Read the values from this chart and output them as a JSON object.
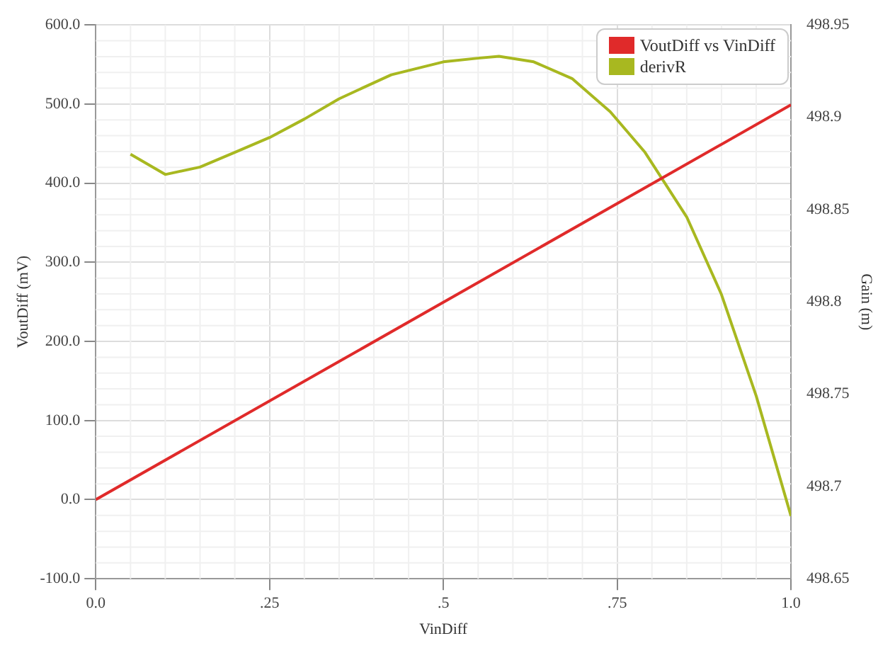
{
  "chart_data": {
    "type": "line",
    "xlabel": "VinDiff",
    "ylabel": "VoutDiff (mV)",
    "y2label": "Gain (m)",
    "xlim": [
      0,
      1
    ],
    "xticks": [
      {
        "value": 0,
        "label": "0.0"
      },
      {
        "value": 0.25,
        "label": ".25"
      },
      {
        "value": 0.5,
        "label": ".5"
      },
      {
        "value": 0.75,
        "label": ".75"
      },
      {
        "value": 1,
        "label": "1.0"
      }
    ],
    "ylim": [
      -100,
      600
    ],
    "yticks": [
      {
        "value": -100,
        "label": "-100.0"
      },
      {
        "value": 0,
        "label": "0.0"
      },
      {
        "value": 100,
        "label": "100.0"
      },
      {
        "value": 200,
        "label": "200.0"
      },
      {
        "value": 300,
        "label": "300.0"
      },
      {
        "value": 400,
        "label": "400.0"
      },
      {
        "value": 500,
        "label": "500.0"
      },
      {
        "value": 600,
        "label": "600.0"
      }
    ],
    "y2lim": [
      498.65,
      498.95
    ],
    "y2ticks": [
      498.65,
      498.7,
      498.75,
      498.8,
      498.85,
      498.9,
      498.95
    ],
    "grid": true,
    "legend": "top right",
    "marker": "none",
    "line_style": "solid",
    "series": [
      {
        "name": "VoutDiff vs VinDiff",
        "color": "#e02a2a",
        "x": [
          0,
          1
        ],
        "values": [
          0,
          499
        ]
      },
      {
        "name": "derivR",
        "color": "#a8b820",
        "axis": "y2",
        "x": [
          0.05,
          0.1,
          0.15,
          0.2,
          0.25,
          0.3,
          0.35,
          0.425,
          0.5,
          0.55,
          0.58,
          0.63,
          0.685,
          0.74,
          0.79,
          0.85,
          0.9,
          0.95,
          1.0
        ],
        "values": [
          498.88,
          498.869,
          498.873,
          498.881,
          498.889,
          498.899,
          498.91,
          498.923,
          498.93,
          498.932,
          498.933,
          498.93,
          498.921,
          498.903,
          498.881,
          498.846,
          498.804,
          498.749,
          498.684
        ]
      }
    ]
  }
}
